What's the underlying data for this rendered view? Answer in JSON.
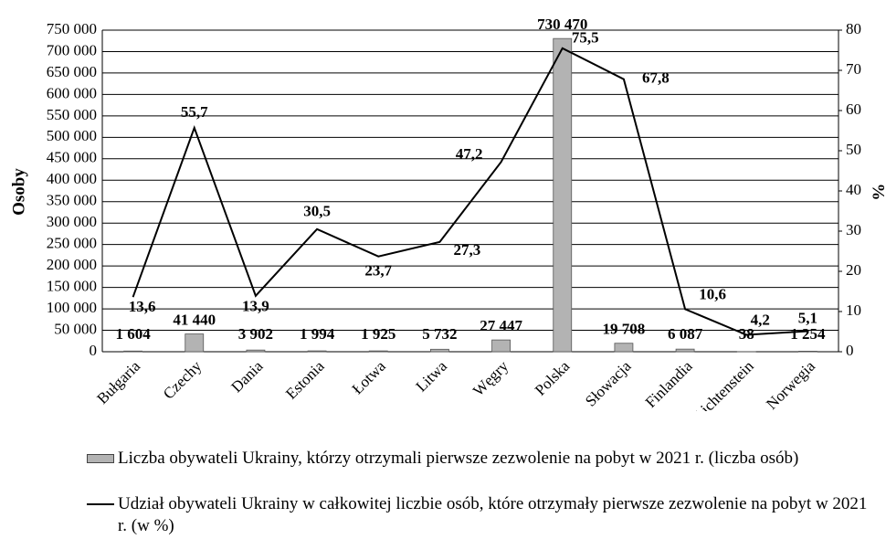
{
  "chart_data": {
    "type": "combo",
    "y_label": "Osoby",
    "y2_label": "%",
    "categories": [
      "Bułgaria",
      "Czechy",
      "Dania",
      "Estonia",
      "Łotwa",
      "Litwa",
      "Węgry",
      "Polska",
      "Słowacja",
      "Finlandia",
      "Lichtenstein",
      "Norwegia"
    ],
    "series": [
      {
        "name": "Liczba obywateli Ukrainy, którzy otrzymali pierwsze zezwolenie na pobyt w 2021 r. (liczba osób)",
        "type": "bar",
        "color": "#b3b3b3",
        "values": [
          1604,
          41440,
          3902,
          1994,
          1925,
          5732,
          27447,
          730470,
          19708,
          6087,
          38,
          1254
        ],
        "value_labels": [
          "1 604",
          "41 440",
          "3 902",
          "1 994",
          "1 925",
          "5 732",
          "27 447",
          "730 470",
          "19 708",
          "6 087",
          "38",
          "1 254"
        ]
      },
      {
        "name": "Udział obywateli Ukrainy w całkowitej liczbie osób, które otrzymały pierwsze zezwolenie na pobyt w 2021 r. (w %)",
        "type": "line",
        "axis": "y2",
        "color": "#000000",
        "values": [
          13.6,
          55.7,
          13.9,
          30.5,
          23.7,
          27.3,
          47.2,
          75.5,
          67.8,
          10.6,
          4.2,
          5.1
        ],
        "value_labels": [
          "13,6",
          "55,7",
          "13,9",
          "30,5",
          "23,7",
          "27,3",
          "47,2",
          "75,5",
          "67,8",
          "10,6",
          "4,2",
          "5,1"
        ]
      }
    ],
    "ylim": [
      0,
      750000
    ],
    "yticks": [
      0,
      {
        "value": 50000,
        "label": "50 000"
      },
      {
        "value": 100000,
        "label": "100 000"
      },
      {
        "value": 150000,
        "label": "150 000"
      },
      {
        "value": 200000,
        "label": "200 000"
      },
      {
        "value": 250000,
        "label": "250 000"
      },
      {
        "value": 300000,
        "label": "300 000"
      },
      {
        "value": 350000,
        "label": "350 000"
      },
      {
        "value": 400000,
        "label": "400 000"
      },
      {
        "value": 450000,
        "label": "450 000"
      },
      {
        "value": 500000,
        "label": "500 000"
      },
      {
        "value": 550000,
        "label": "550 000"
      },
      {
        "value": 600000,
        "label": "600 000"
      },
      {
        "value": 650000,
        "label": "650 000"
      },
      {
        "value": 700000,
        "label": "700 000"
      },
      {
        "value": 750000,
        "label": "750 000"
      }
    ],
    "y2lim": [
      0,
      80
    ],
    "y2ticks": [
      0,
      10,
      20,
      30,
      40,
      50,
      60,
      70,
      80
    ],
    "grid": true
  }
}
